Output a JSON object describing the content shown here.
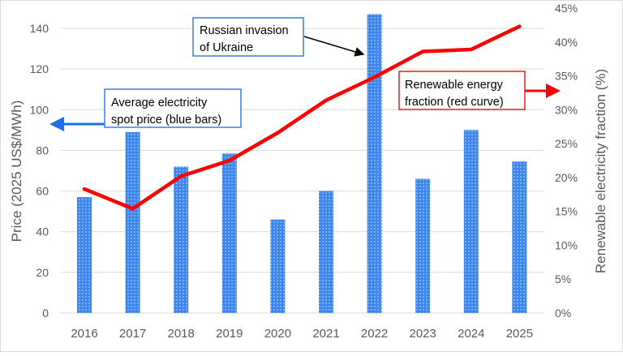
{
  "chart_data": {
    "type": "bar",
    "categories": [
      "2016",
      "2017",
      "2018",
      "2019",
      "2020",
      "2021",
      "2022",
      "2023",
      "2024",
      "2025"
    ],
    "series": [
      {
        "kind": "bar",
        "axis": "left",
        "color": "#4a8ff0",
        "values": [
          57,
          89,
          72,
          78.5,
          46,
          60,
          147,
          66,
          90,
          74.5
        ]
      },
      {
        "kind": "line",
        "axis": "right",
        "color": "#ff0000",
        "values": [
          18.3,
          15.4,
          20.2,
          22.5,
          26.6,
          31.4,
          34.8,
          38.6,
          38.9,
          42.3
        ]
      }
    ],
    "ylabel": "Price (2025 US$/MWh)",
    "ylabel_right": "Renewable electricity fraction (%)",
    "ylim": [
      0,
      150
    ],
    "ylim_right": [
      0,
      45
    ],
    "yticks": [
      "0",
      "20",
      "40",
      "60",
      "80",
      "100",
      "120",
      "140"
    ],
    "yticks_right": [
      "0%",
      "5%",
      "10%",
      "15%",
      "20%",
      "25%",
      "30%",
      "35%",
      "40%",
      "45%"
    ],
    "grid": true,
    "annotations": {
      "invasion": [
        "Russian invasion",
        "of Ukraine"
      ],
      "price": [
        "Average electricity",
        "spot price (blue bars)"
      ],
      "renewable": [
        "Renewable energy",
        "fraction (red curve)"
      ]
    }
  }
}
